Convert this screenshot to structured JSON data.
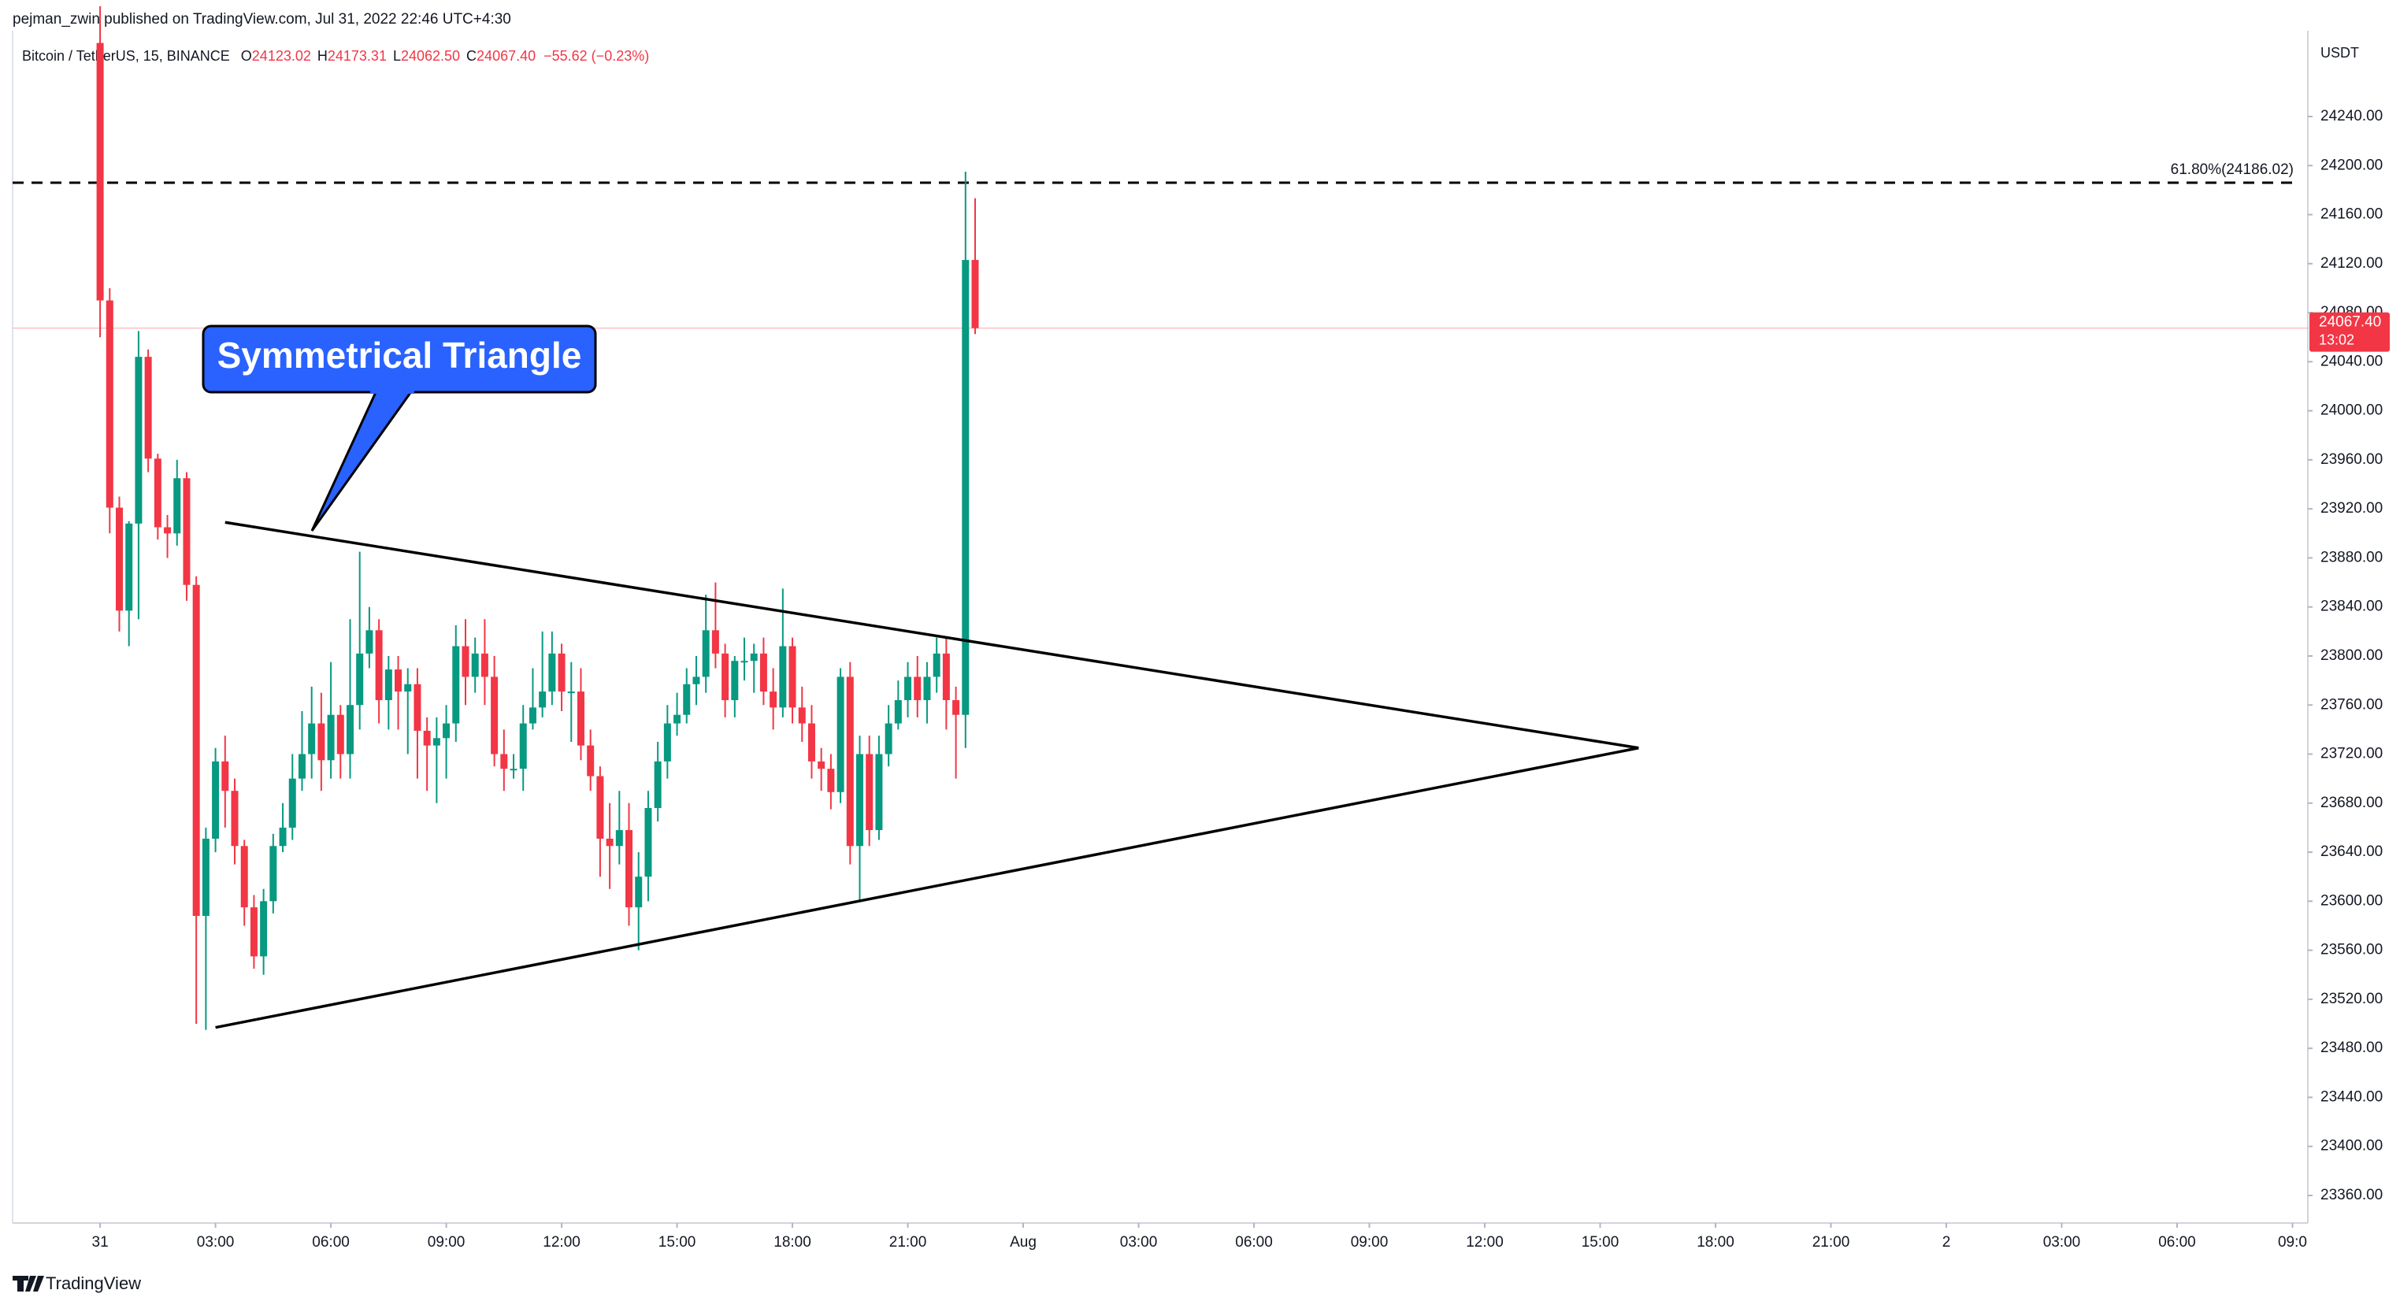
{
  "header": {
    "published": "pejman_zwin published on TradingView.com, Jul 31, 2022 22:46 UTC+4:30",
    "symbol": "Bitcoin / TetherUS, 15, BINANCE",
    "o_label": "O",
    "o": "24123.02",
    "h_label": "H",
    "h": "24173.31",
    "l_label": "L",
    "l": "24062.50",
    "c_label": "C",
    "c": "24067.40",
    "change": "−55.62 (−0.23%)",
    "brand": "TradingView"
  },
  "chart_data": {
    "type": "candlestick",
    "currency": "USDT",
    "up_color": "#089981",
    "down_color": "#f23645",
    "xlim": [
      -9.1,
      229.6
    ],
    "xticks": [
      {
        "value": 0,
        "label": "31"
      },
      {
        "value": 12,
        "label": "03:00"
      },
      {
        "value": 24,
        "label": "06:00"
      },
      {
        "value": 36,
        "label": "09:00"
      },
      {
        "value": 48,
        "label": "12:00"
      },
      {
        "value": 60,
        "label": "15:00"
      },
      {
        "value": 72,
        "label": "18:00"
      },
      {
        "value": 84,
        "label": "21:00"
      },
      {
        "value": 96,
        "label": "Aug"
      },
      {
        "value": 108,
        "label": "03:00"
      },
      {
        "value": 120,
        "label": "06:00"
      },
      {
        "value": 132,
        "label": "09:00"
      },
      {
        "value": 144,
        "label": "12:00"
      },
      {
        "value": 156,
        "label": "15:00"
      },
      {
        "value": 168,
        "label": "18:00"
      },
      {
        "value": 180,
        "label": "21:00"
      },
      {
        "value": 192,
        "label": "2"
      },
      {
        "value": 204,
        "label": "03:00"
      },
      {
        "value": 216,
        "label": "06:00"
      },
      {
        "value": 228,
        "label": "09:0"
      }
    ],
    "ylim": [
      23337.5,
      24310
    ],
    "yticks": [
      {
        "value": 23360,
        "label": "23360.00"
      },
      {
        "value": 23400,
        "label": "23400.00"
      },
      {
        "value": 23440,
        "label": "23440.00"
      },
      {
        "value": 23480,
        "label": "23480.00"
      },
      {
        "value": 23520,
        "label": "23520.00"
      },
      {
        "value": 23560,
        "label": "23560.00"
      },
      {
        "value": 23600,
        "label": "23600.00"
      },
      {
        "value": 23640,
        "label": "23640.00"
      },
      {
        "value": 23680,
        "label": "23680.00"
      },
      {
        "value": 23720,
        "label": "23720.00"
      },
      {
        "value": 23760,
        "label": "23760.00"
      },
      {
        "value": 23800,
        "label": "23800.00"
      },
      {
        "value": 23840,
        "label": "23840.00"
      },
      {
        "value": 23880,
        "label": "23880.00"
      },
      {
        "value": 23920,
        "label": "23920.00"
      },
      {
        "value": 23960,
        "label": "23960.00"
      },
      {
        "value": 24000,
        "label": "24000.00"
      },
      {
        "value": 24040,
        "label": "24040.00"
      },
      {
        "value": 24080,
        "label": "24080.00"
      },
      {
        "value": 24120,
        "label": "24120.00"
      },
      {
        "value": 24160,
        "label": "24160.00"
      },
      {
        "value": 24200,
        "label": "24200.00"
      },
      {
        "value": 24240,
        "label": "24240.00"
      }
    ],
    "grid": false,
    "open": [
      24300,
      24090,
      23921,
      23837,
      23908,
      24044,
      23961,
      23905,
      23900,
      23945,
      23858,
      23588,
      23651,
      23714,
      23690,
      23645,
      23595,
      23555,
      23600,
      23645,
      23660,
      23700,
      23720,
      23745,
      23715,
      23752,
      23720,
      23760,
      23802,
      23821,
      23764,
      23789,
      23771,
      23777,
      23739,
      23727,
      23733,
      23745,
      23808,
      23783,
      23802,
      23783,
      23720,
      23708,
      23708,
      23745,
      23758,
      23771,
      23802,
      23771,
      23771,
      23727,
      23702,
      23651,
      23645,
      23658,
      23595,
      23620,
      23676,
      23714,
      23745,
      23752,
      23777,
      23783,
      23821,
      23802,
      23764,
      23796,
      23796,
      23802,
      23771,
      23758,
      23808,
      23758,
      23745,
      23714,
      23708,
      23689,
      23783,
      23645,
      23720,
      23658,
      23720,
      23745,
      23764,
      23783,
      23764,
      23783,
      23802,
      23764,
      23752,
      24123.02
    ],
    "high": [
      24330,
      24100,
      23930,
      23910,
      24065,
      24050,
      23965,
      23915,
      23960,
      23950,
      23865,
      23660,
      23725,
      23735,
      23700,
      23650,
      23605,
      23610,
      23655,
      23680,
      23720,
      23755,
      23775,
      23770,
      23795,
      23760,
      23830,
      23885,
      23840,
      23830,
      23800,
      23800,
      23790,
      23790,
      23750,
      23750,
      23760,
      23825,
      23830,
      23815,
      23830,
      23800,
      23740,
      23720,
      23760,
      23790,
      23820,
      23820,
      23810,
      23795,
      23790,
      23740,
      23710,
      23680,
      23690,
      23680,
      23640,
      23690,
      23730,
      23760,
      23770,
      23790,
      23800,
      23850,
      23860,
      23810,
      23800,
      23815,
      23810,
      23815,
      23790,
      23855,
      23815,
      23775,
      23760,
      23725,
      23720,
      23790,
      23795,
      23735,
      23735,
      23735,
      23760,
      23780,
      23795,
      23800,
      23795,
      23815,
      23815,
      23775,
      24195,
      24173.31
    ],
    "low": [
      24060,
      23900,
      23820,
      23808,
      23830,
      23950,
      23895,
      23880,
      23890,
      23845,
      23500,
      23495,
      23640,
      23660,
      23630,
      23580,
      23545,
      23540,
      23590,
      23640,
      23650,
      23690,
      23700,
      23690,
      23700,
      23700,
      23700,
      23740,
      23790,
      23745,
      23740,
      23740,
      23720,
      23700,
      23690,
      23680,
      23700,
      23730,
      23760,
      23770,
      23760,
      23710,
      23690,
      23700,
      23690,
      23740,
      23750,
      23760,
      23755,
      23730,
      23715,
      23690,
      23620,
      23610,
      23630,
      23580,
      23560,
      23600,
      23665,
      23700,
      23735,
      23745,
      23760,
      23770,
      23790,
      23750,
      23750,
      23780,
      23770,
      23760,
      23740,
      23750,
      23745,
      23730,
      23700,
      23690,
      23675,
      23680,
      23630,
      23600,
      23645,
      23650,
      23710,
      23740,
      23750,
      23750,
      23745,
      23770,
      23740,
      23700,
      23725,
      24062.5
    ],
    "close": [
      24090,
      23921,
      23837,
      23908,
      24044,
      23961,
      23905,
      23900,
      23945,
      23858,
      23588,
      23651,
      23714,
      23690,
      23645,
      23595,
      23555,
      23600,
      23645,
      23660,
      23700,
      23720,
      23745,
      23715,
      23752,
      23720,
      23760,
      23802,
      23821,
      23764,
      23789,
      23771,
      23777,
      23739,
      23727,
      23733,
      23745,
      23808,
      23783,
      23802,
      23783,
      23720,
      23708,
      23708,
      23745,
      23758,
      23771,
      23802,
      23771,
      23771,
      23727,
      23702,
      23651,
      23645,
      23658,
      23595,
      23620,
      23676,
      23714,
      23745,
      23752,
      23777,
      23783,
      23821,
      23802,
      23764,
      23796,
      23796,
      23802,
      23771,
      23758,
      23808,
      23758,
      23745,
      23714,
      23708,
      23689,
      23783,
      23645,
      23720,
      23658,
      23720,
      23745,
      23764,
      23783,
      23764,
      23783,
      23802,
      23764,
      23752,
      24123.02,
      24067.4
    ],
    "fib": {
      "value": 24186.02,
      "label": "61.80%(24186.02)"
    },
    "price_tag": {
      "value": 24067.4,
      "label": "24067.40",
      "timer": "13:02"
    },
    "trendlines": [
      {
        "x": [
          13,
          160
        ],
        "y": [
          23909,
          23725
        ]
      },
      {
        "x": [
          12,
          160
        ],
        "y": [
          23497,
          23725
        ]
      }
    ],
    "annotation": "Symmetrical Triangle"
  }
}
